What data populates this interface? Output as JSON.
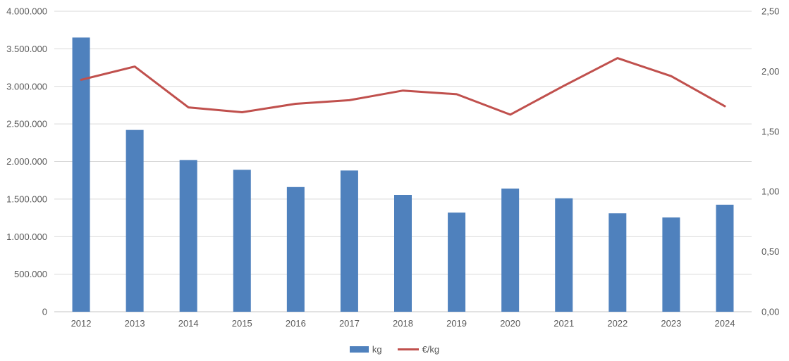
{
  "chart_data": {
    "type": "bar+line",
    "title": "",
    "categories": [
      "2012",
      "2013",
      "2014",
      "2015",
      "2016",
      "2017",
      "2018",
      "2019",
      "2020",
      "2021",
      "2022",
      "2023",
      "2024"
    ],
    "series": [
      {
        "name": "kg",
        "type": "bar",
        "axis": "left",
        "color": "#4f81bd",
        "values": [
          3650000,
          2420000,
          2020000,
          1890000,
          1660000,
          1880000,
          1555000,
          1320000,
          1640000,
          1510000,
          1310000,
          1255000,
          1425000
        ]
      },
      {
        "name": "€/kg",
        "type": "line",
        "axis": "right",
        "color": "#c0504d",
        "values": [
          1.93,
          2.04,
          1.7,
          1.66,
          1.73,
          1.76,
          1.84,
          1.81,
          1.64,
          1.88,
          2.11,
          1.96,
          1.71
        ]
      }
    ],
    "left_axis": {
      "min": 0,
      "max": 4000000,
      "ticks": [
        {
          "value": 0,
          "label": "0"
        },
        {
          "value": 500000,
          "label": "500.000"
        },
        {
          "value": 1000000,
          "label": "1.000.000"
        },
        {
          "value": 1500000,
          "label": "1.500.000"
        },
        {
          "value": 2000000,
          "label": "2.000.000"
        },
        {
          "value": 2500000,
          "label": "2.500.000"
        },
        {
          "value": 3000000,
          "label": "3.000.000"
        },
        {
          "value": 3500000,
          "label": "3.500.000"
        },
        {
          "value": 4000000,
          "label": "4.000.000"
        }
      ]
    },
    "right_axis": {
      "min": 0,
      "max": 2.5,
      "ticks": [
        {
          "value": 0,
          "label": "0,00"
        },
        {
          "value": 0.5,
          "label": "0,50"
        },
        {
          "value": 1,
          "label": "1,00"
        },
        {
          "value": 1.5,
          "label": "1,50"
        },
        {
          "value": 2,
          "label": "2,00"
        },
        {
          "value": 2.5,
          "label": "2,50"
        }
      ]
    },
    "grid": true,
    "legend_position": "bottom",
    "colors": {
      "background": "#ffffff",
      "gridline": "#d9d9d9",
      "axis_line": "#c6c6c6",
      "text": "#595959"
    }
  }
}
